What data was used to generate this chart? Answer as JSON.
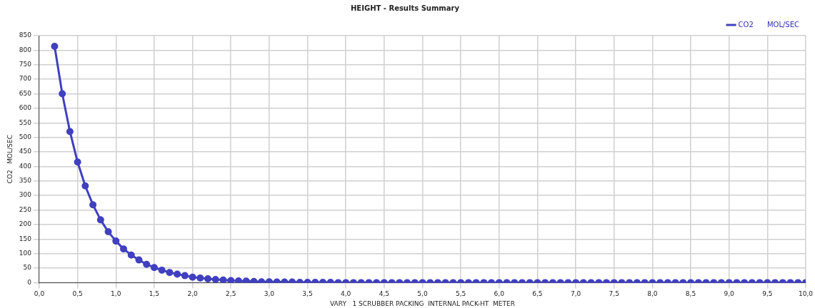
{
  "chart_data": {
    "type": "line",
    "title": "HEIGHT - Results Summary",
    "xlabel": "VARY   1 SCRUBBER PACKING  INTERNAL PACK-HT  METER",
    "ylabel": "CO2   MOL/SEC",
    "x": [
      0.2,
      0.3,
      0.4,
      0.5,
      0.6,
      0.7,
      0.8,
      0.9,
      1.0,
      1.1,
      1.2,
      1.3,
      1.4,
      1.5,
      1.6,
      1.7,
      1.8,
      1.9,
      2.0,
      2.1,
      2.2,
      2.3,
      2.4,
      2.5,
      2.6,
      2.7,
      2.8,
      2.9,
      3.0,
      3.1,
      3.2,
      3.3,
      3.4,
      3.5,
      3.6,
      3.7,
      3.8,
      3.9,
      4.0,
      4.1,
      4.2,
      4.3,
      4.4,
      4.5,
      4.6,
      4.7,
      4.8,
      4.9,
      5.0,
      5.1,
      5.2,
      5.3,
      5.4,
      5.5,
      5.6,
      5.7,
      5.8,
      5.9,
      6.0,
      6.1,
      6.2,
      6.3,
      6.4,
      6.5,
      6.6,
      6.7,
      6.8,
      6.9,
      7.0,
      7.1,
      7.2,
      7.3,
      7.4,
      7.5,
      7.6,
      7.7,
      7.8,
      7.9,
      8.0,
      8.1,
      8.2,
      8.3,
      8.4,
      8.5,
      8.6,
      8.7,
      8.8,
      8.9,
      9.0,
      9.1,
      9.2,
      9.3,
      9.4,
      9.5,
      9.6,
      9.7,
      9.8,
      9.9,
      10.0
    ],
    "series": [
      {
        "name": "CO2      MOL/SEC",
        "color": "#4040c0",
        "values": [
          813,
          650,
          520,
          415,
          333,
          268,
          216,
          175,
          143,
          116,
          95,
          78,
          63,
          52,
          43,
          35,
          29,
          24,
          19,
          16,
          13,
          11,
          9,
          7,
          6,
          5,
          4,
          3,
          3,
          2,
          2,
          2,
          1,
          1,
          1,
          1,
          1,
          0,
          0,
          0,
          0,
          0,
          0,
          0,
          0,
          0,
          0,
          0,
          0,
          0,
          0,
          0,
          0,
          0,
          0,
          0,
          0,
          0,
          0,
          0,
          0,
          0,
          0,
          0,
          0,
          0,
          0,
          0,
          0,
          0,
          0,
          0,
          0,
          0,
          0,
          0,
          0,
          0,
          0,
          0,
          0,
          0,
          0,
          0,
          0,
          0,
          0,
          0,
          0,
          0,
          0,
          0,
          0,
          0,
          0,
          0,
          0,
          0,
          0
        ]
      }
    ],
    "xlim": [
      0,
      10
    ],
    "xticks": [
      {
        "value": 0,
        "label": "0,0"
      },
      {
        "value": 0.5,
        "label": "0,5"
      },
      {
        "value": 1,
        "label": "1,0"
      },
      {
        "value": 1.5,
        "label": "1,5"
      },
      {
        "value": 2,
        "label": "2,0"
      },
      {
        "value": 2.5,
        "label": "2,5"
      },
      {
        "value": 3,
        "label": "3,0"
      },
      {
        "value": 3.5,
        "label": "3,5"
      },
      {
        "value": 4,
        "label": "4,0"
      },
      {
        "value": 4.5,
        "label": "4,5"
      },
      {
        "value": 5,
        "label": "5,0"
      },
      {
        "value": 5.5,
        "label": "5,5"
      },
      {
        "value": 6,
        "label": "6,0"
      },
      {
        "value": 6.5,
        "label": "6,5"
      },
      {
        "value": 7,
        "label": "7,0"
      },
      {
        "value": 7.5,
        "label": "7,5"
      },
      {
        "value": 8,
        "label": "8,0"
      },
      {
        "value": 8.5,
        "label": "8,5"
      },
      {
        "value": 9,
        "label": "9,0"
      },
      {
        "value": 9.5,
        "label": "9,5"
      },
      {
        "value": 10,
        "label": "10,0"
      }
    ],
    "ylim": [
      0,
      850
    ],
    "yticks": [
      0,
      50,
      100,
      150,
      200,
      250,
      300,
      350,
      400,
      450,
      500,
      550,
      600,
      650,
      700,
      750,
      800,
      850
    ],
    "grid": true,
    "legend": "top right",
    "marker": "circle",
    "line_style": "solid"
  }
}
